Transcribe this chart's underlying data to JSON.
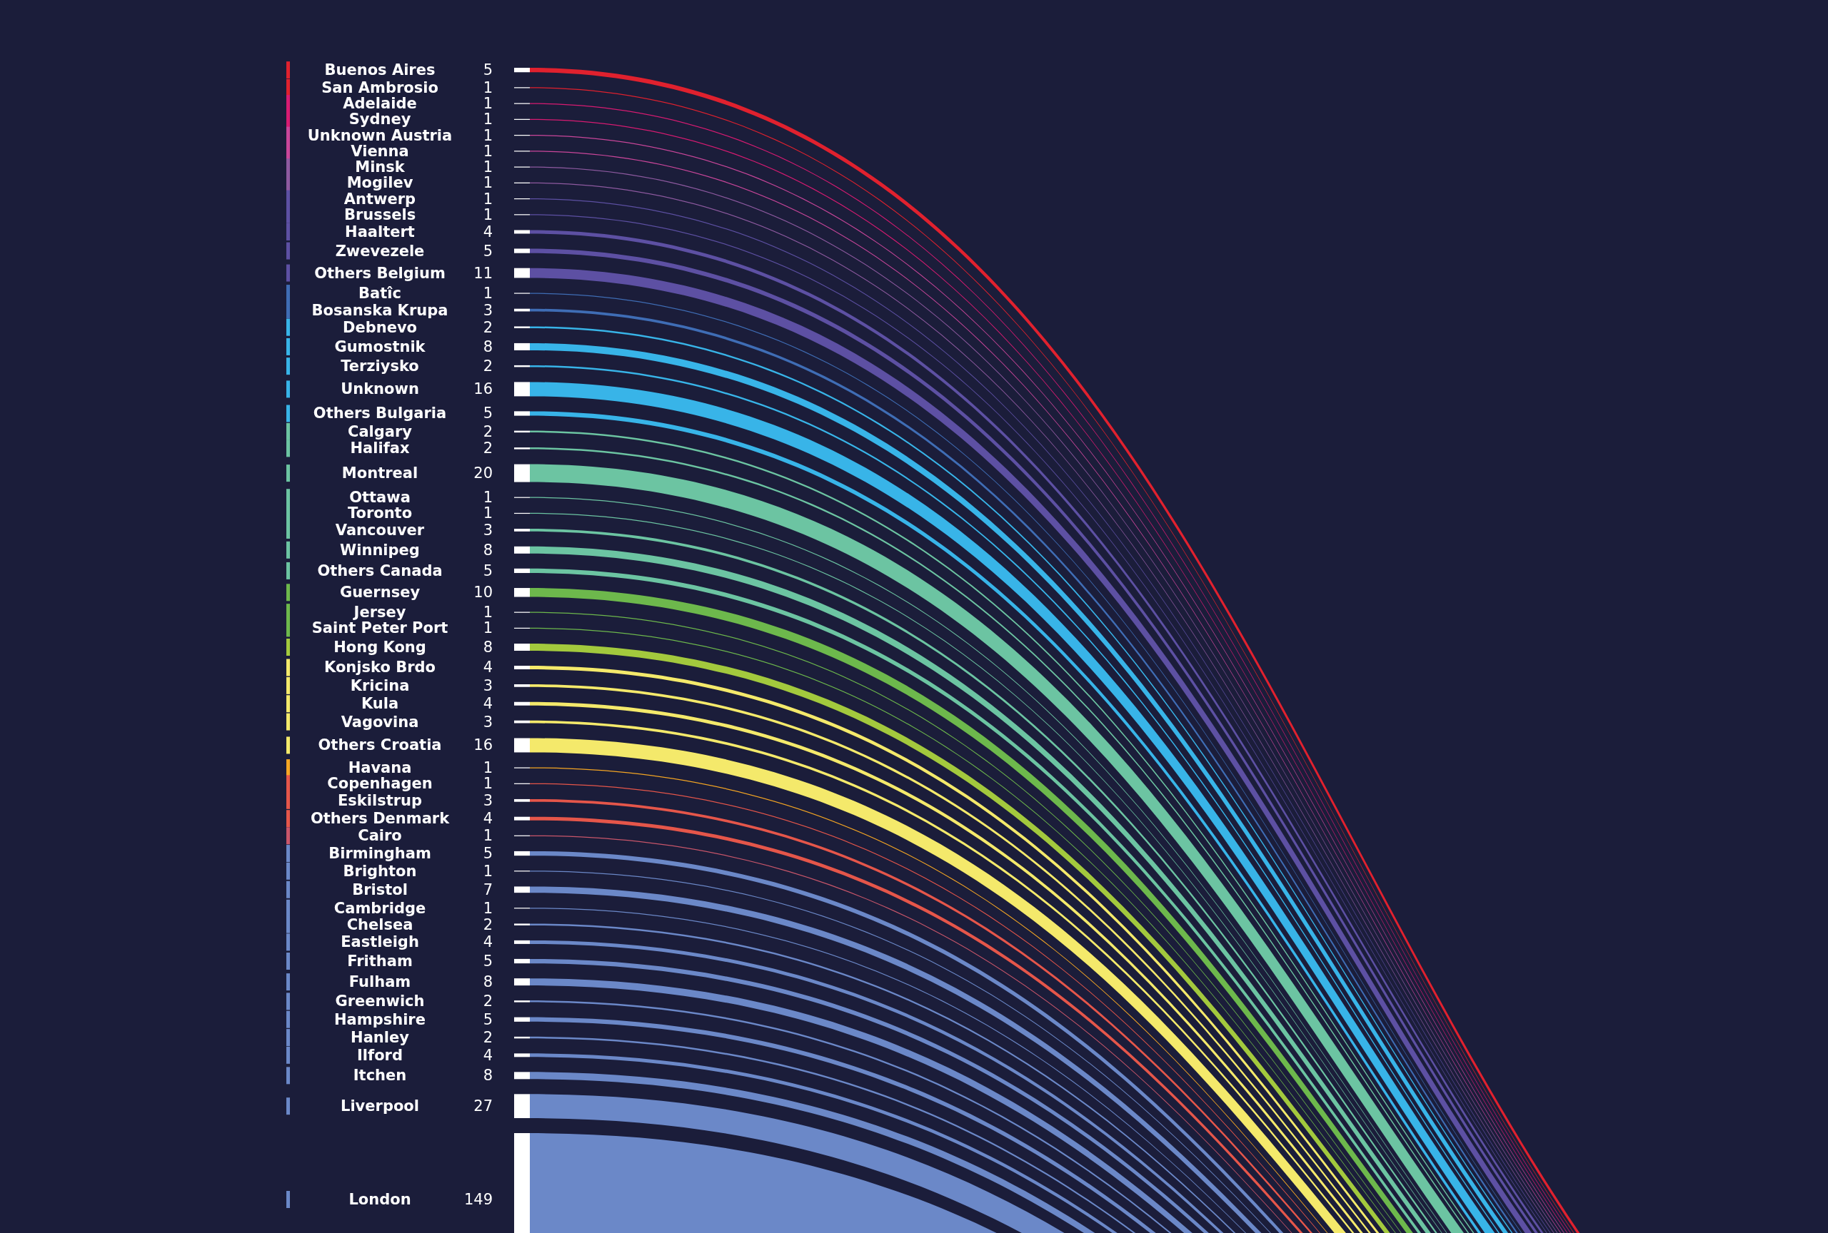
{
  "chart_data": {
    "type": "other",
    "data_labels": true,
    "categories": [
      "Buenos Aires",
      "San Ambrosio",
      "Adelaide",
      "Sydney",
      "Unknown Austria",
      "Vienna",
      "Minsk",
      "Mogilev",
      "Antwerp",
      "Brussels",
      "Haaltert",
      "Zwevezele",
      "Others Belgium",
      "Batîc",
      "Bosanska Krupa",
      "Debnevo",
      "Gumostnik",
      "Terziysko",
      "Unknown",
      "Others Bulgaria",
      "Calgary",
      "Halifax",
      "Montreal",
      "Ottawa",
      "Toronto",
      "Vancouver",
      "Winnipeg",
      "Others Canada",
      "Guernsey",
      "Jersey",
      "Saint Peter Port",
      "Hong Kong",
      "Konjsko Brdo",
      "Kricina",
      "Kula",
      "Vagovina",
      "Others Croatia",
      "Havana",
      "Copenhagen",
      "Eskilstrup",
      "Others Denmark",
      "Cairo",
      "Birmingham",
      "Brighton",
      "Bristol",
      "Cambridge",
      "Chelsea",
      "Eastleigh",
      "Fritham",
      "Fulham",
      "Greenwich",
      "Hampshire",
      "Hanley",
      "Ilford",
      "Itchen",
      "Liverpool",
      "London"
    ],
    "values": [
      5,
      1,
      1,
      1,
      1,
      1,
      1,
      1,
      1,
      1,
      4,
      5,
      11,
      1,
      3,
      2,
      8,
      2,
      16,
      5,
      2,
      2,
      20,
      1,
      1,
      3,
      8,
      5,
      10,
      1,
      1,
      8,
      4,
      3,
      4,
      3,
      16,
      1,
      1,
      3,
      4,
      1,
      5,
      1,
      7,
      1,
      2,
      4,
      5,
      8,
      2,
      5,
      2,
      4,
      8,
      27,
      149
    ],
    "colors": [
      "#e0212e",
      "#e0212e",
      "#d81b72",
      "#d81b72",
      "#c9469a",
      "#c9469a",
      "#8e5aa0",
      "#8e5aa0",
      "#5d50a3",
      "#5d50a3",
      "#5d50a3",
      "#5d50a3",
      "#5d50a3",
      "#3f6db5",
      "#3f6db5",
      "#38b4e8",
      "#38b4e8",
      "#38b4e8",
      "#38b4e8",
      "#38b4e8",
      "#6cc4a2",
      "#6cc4a2",
      "#6cc4a2",
      "#6cc4a2",
      "#6cc4a2",
      "#6cc4a2",
      "#6cc4a2",
      "#6cc4a2",
      "#6db84c",
      "#6db84c",
      "#6db84c",
      "#a3c93d",
      "#f4e96b",
      "#f4e96b",
      "#f4e96b",
      "#f4e96b",
      "#f4e96b",
      "#f5a623",
      "#e5564a",
      "#e5564a",
      "#e5564a",
      "#c9566a",
      "#6b88c8",
      "#6b88c8",
      "#6b88c8",
      "#6b88c8",
      "#6b88c8",
      "#6b88c8",
      "#6b88c8",
      "#6b88c8",
      "#6b88c8",
      "#6b88c8",
      "#6b88c8",
      "#6b88c8",
      "#6b88c8",
      "#6b88c8",
      "#6b88c8"
    ]
  }
}
